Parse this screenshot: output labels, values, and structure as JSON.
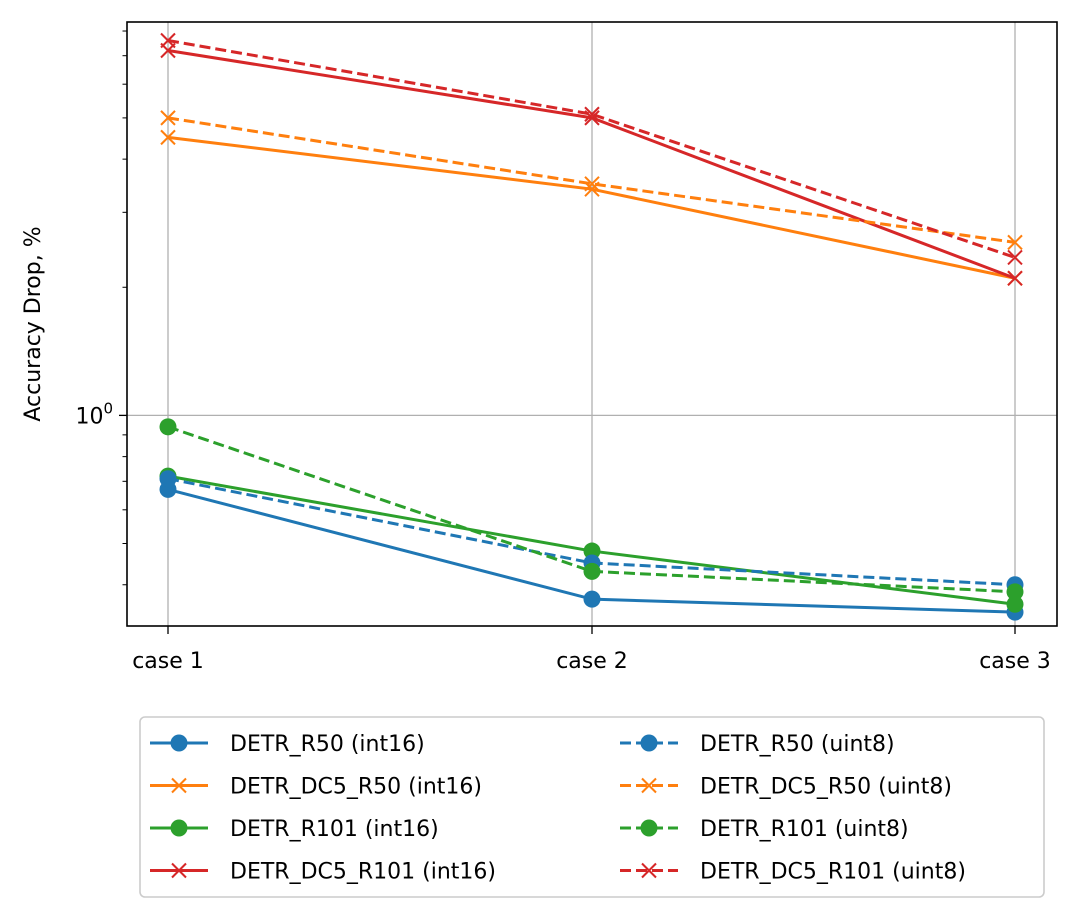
{
  "chart_data": {
    "type": "line",
    "title": "",
    "xlabel": "",
    "ylabel": "Accuracy Drop, %",
    "yscale": "log",
    "ylim": [
      0.32,
      8.4
    ],
    "grid": true,
    "categories": [
      "case 1",
      "case 2",
      "case 3"
    ],
    "y_tick_labels": [
      {
        "value": 1,
        "base": "10",
        "exponent": "0"
      }
    ],
    "legend_position": "bottom",
    "legend_columns": 2,
    "series": [
      {
        "name": "DETR_R50 (int16)",
        "color": "#1f77b4",
        "linestyle": "solid",
        "marker": "circle",
        "values": [
          0.67,
          0.37,
          0.345
        ]
      },
      {
        "name": "DETR_DC5_R50 (int16)",
        "color": "#ff7f0e",
        "linestyle": "solid",
        "marker": "x",
        "values": [
          4.5,
          3.4,
          2.1
        ]
      },
      {
        "name": "DETR_R101 (int16)",
        "color": "#2ca02c",
        "linestyle": "solid",
        "marker": "circle",
        "values": [
          0.72,
          0.48,
          0.36
        ]
      },
      {
        "name": "DETR_DC5_R101 (int16)",
        "color": "#d62728",
        "linestyle": "solid",
        "marker": "x",
        "values": [
          7.2,
          5.0,
          2.1
        ]
      },
      {
        "name": "DETR_R50 (uint8)",
        "color": "#1f77b4",
        "linestyle": "dashed",
        "marker": "circle",
        "values": [
          0.71,
          0.45,
          0.4
        ]
      },
      {
        "name": "DETR_DC5_R50 (uint8)",
        "color": "#ff7f0e",
        "linestyle": "dashed",
        "marker": "x",
        "values": [
          5.0,
          3.5,
          2.55
        ]
      },
      {
        "name": "DETR_R101 (uint8)",
        "color": "#2ca02c",
        "linestyle": "dashed",
        "marker": "circle",
        "values": [
          0.94,
          0.43,
          0.385
        ]
      },
      {
        "name": "DETR_DC5_R101 (uint8)",
        "color": "#d62728",
        "linestyle": "dashed",
        "marker": "x",
        "values": [
          7.6,
          5.1,
          2.35
        ]
      }
    ]
  }
}
